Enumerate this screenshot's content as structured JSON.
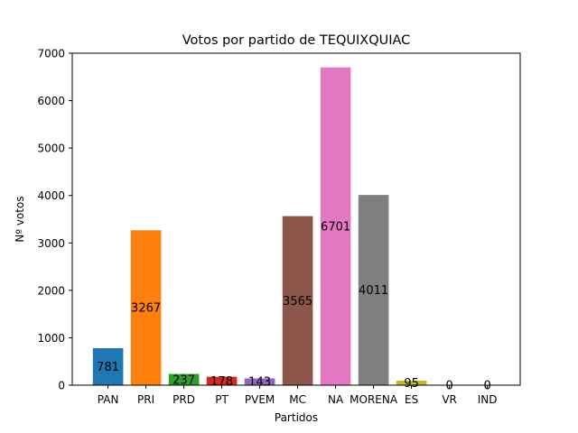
{
  "chart_data": {
    "type": "bar",
    "title": "Votos por partido de TEQUIXQUIAC",
    "xlabel": "Partidos",
    "ylabel": "Nº votos",
    "categories": [
      "PAN",
      "PRI",
      "PRD",
      "PT",
      "PVEM",
      "MC",
      "NA",
      "MORENA",
      "ES",
      "VR",
      "IND"
    ],
    "values": [
      781,
      3267,
      237,
      178,
      143,
      3565,
      6701,
      4011,
      95,
      0,
      0
    ],
    "colors": [
      "#1f77b4",
      "#ff7f0e",
      "#2ca02c",
      "#d62728",
      "#9467bd",
      "#8c564b",
      "#e377c2",
      "#7f7f7f",
      "#bcbd22",
      "#17becf",
      "#1f77b4"
    ],
    "ylim": [
      0,
      7000
    ],
    "yticks": [
      0,
      1000,
      2000,
      3000,
      4000,
      5000,
      6000,
      7000
    ],
    "grid": false,
    "legend": false
  }
}
